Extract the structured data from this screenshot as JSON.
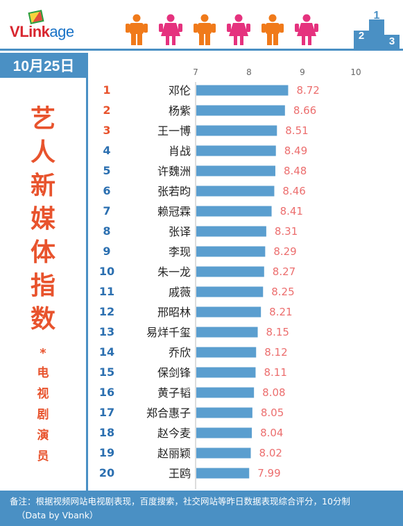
{
  "logo": {
    "text_v": "V",
    "text_link": "Link",
    "text_age": "age"
  },
  "date": "10月25日",
  "title_chars": [
    "艺",
    "人",
    "新",
    "媒",
    "体",
    "指",
    "数"
  ],
  "star": "*",
  "subtitle_chars": [
    "电",
    "视",
    "剧",
    "演",
    "员"
  ],
  "footer": {
    "line1": "备注：根据视频网站电视剧表现，百度搜索，社交网站等昨日数据表现综合评分，10分制",
    "line2": "（Data by Vbank）"
  },
  "colors": {
    "accent": "#4a90c4",
    "title": "#e8532d",
    "bar": "#5a9ecf",
    "value": "#ec6e6e",
    "rank_top": "#e8532d",
    "rank_rest": "#2b6fb0"
  },
  "icons": [
    "male-person-icon",
    "female-person-icon",
    "podium-icon"
  ],
  "chart_data": {
    "type": "bar",
    "orientation": "horizontal",
    "xlim": [
      7,
      10
    ],
    "xticks": [
      7,
      8,
      9,
      10
    ],
    "ranks": [
      1,
      2,
      3,
      4,
      5,
      6,
      7,
      8,
      9,
      10,
      11,
      12,
      13,
      14,
      15,
      16,
      17,
      18,
      19,
      20
    ],
    "categories": [
      "邓伦",
      "杨紫",
      "王一博",
      "肖战",
      "许魏洲",
      "张若昀",
      "赖冠霖",
      "张译",
      "李现",
      "朱一龙",
      "戚薇",
      "邢昭林",
      "易烊千玺",
      "乔欣",
      "保剑锋",
      "黄子韬",
      "郑合惠子",
      "赵今麦",
      "赵丽颖",
      "王鸥"
    ],
    "values": [
      8.72,
      8.66,
      8.51,
      8.49,
      8.48,
      8.46,
      8.41,
      8.31,
      8.29,
      8.27,
      8.25,
      8.21,
      8.15,
      8.12,
      8.11,
      8.08,
      8.05,
      8.04,
      8.02,
      7.99
    ],
    "value_labels": [
      "8.72",
      "8.66",
      "8.51",
      "8.49",
      "8.48",
      "8.46",
      "8.41",
      "8.31",
      "8.29",
      "8.27",
      "8.25",
      "8.21",
      "8.15",
      "8.12",
      "8.11",
      "8.08",
      "8.05",
      "8.04",
      "8.02",
      "7.99"
    ]
  }
}
